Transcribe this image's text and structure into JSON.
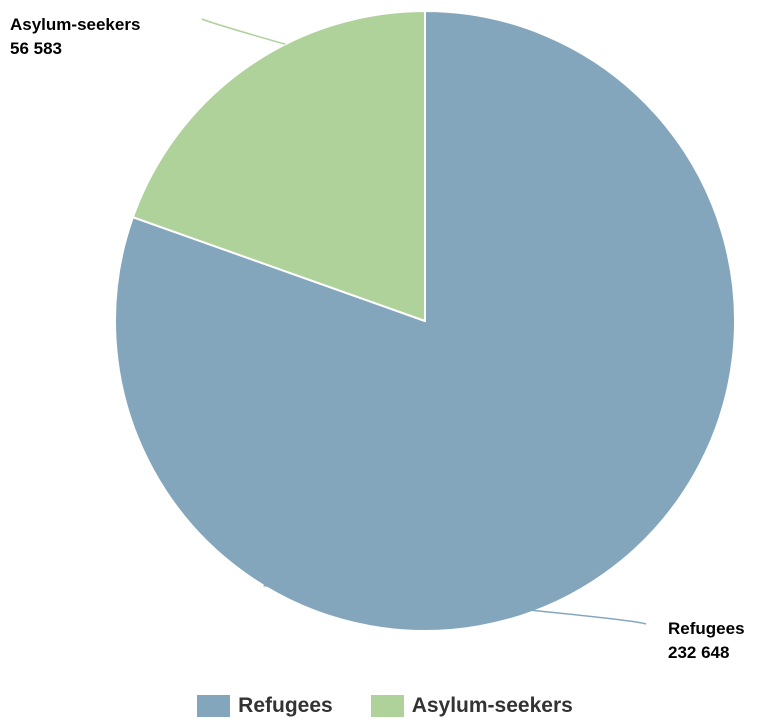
{
  "chart_data": {
    "type": "pie",
    "title": "",
    "legend_position": "bottom",
    "slices": [
      {
        "name": "Refugees",
        "value": 232648,
        "value_label": "232 648",
        "color": "#84a6bc"
      },
      {
        "name": "Asylum-seekers",
        "value": 56583,
        "value_label": "56 583",
        "color": "#afd19a"
      }
    ]
  },
  "legend": {
    "items": [
      {
        "label": "Refugees",
        "color": "#84a6bc"
      },
      {
        "label": "Asylum-seekers",
        "color": "#afd19a"
      }
    ]
  }
}
